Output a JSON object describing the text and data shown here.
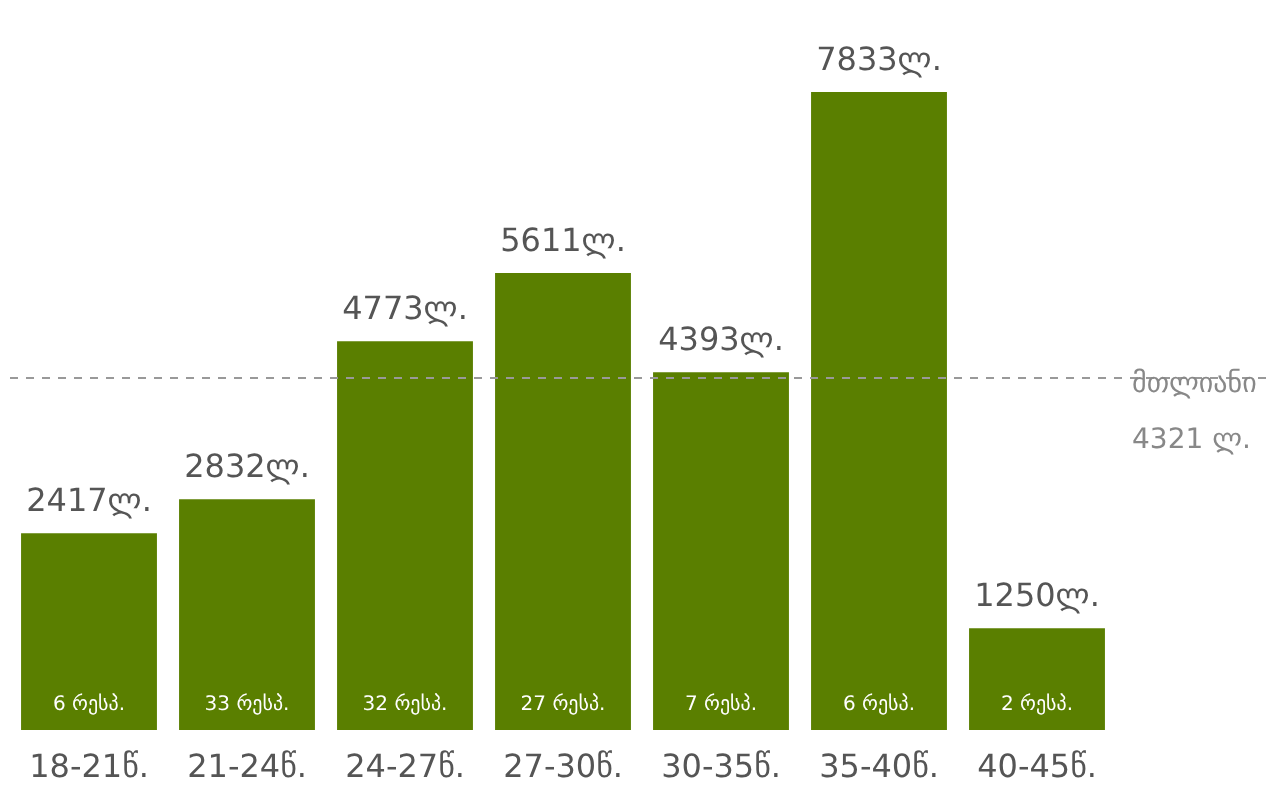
{
  "chart_data": {
    "type": "bar",
    "categories": [
      "18-21წ.",
      "21-24წ.",
      "24-27წ.",
      "27-30წ.",
      "30-35წ.",
      "35-40წ.",
      "40-45წ."
    ],
    "values": [
      2417,
      2832,
      4773,
      5611,
      4393,
      7833,
      1250
    ],
    "value_labels": [
      "2417ლ.",
      "2832ლ.",
      "4773ლ.",
      "5611ლ.",
      "4393ლ.",
      "7833ლ.",
      "1250ლ."
    ],
    "color": "#5a7f00",
    "tick_labels": "x",
    "ref_lines": [
      {
        "axis": "y",
        "value": 4321,
        "label": "მთლიანი\n4321 ლ.",
        "color": "#999999",
        "line_style": "dashed"
      }
    ],
    "annotations": [
      "6 რესპ.",
      "33 რესპ.",
      "32 რესპ.",
      "27 რესპ.",
      "7 რესპ.",
      "6 რესპ.",
      "2 რესპ."
    ]
  }
}
